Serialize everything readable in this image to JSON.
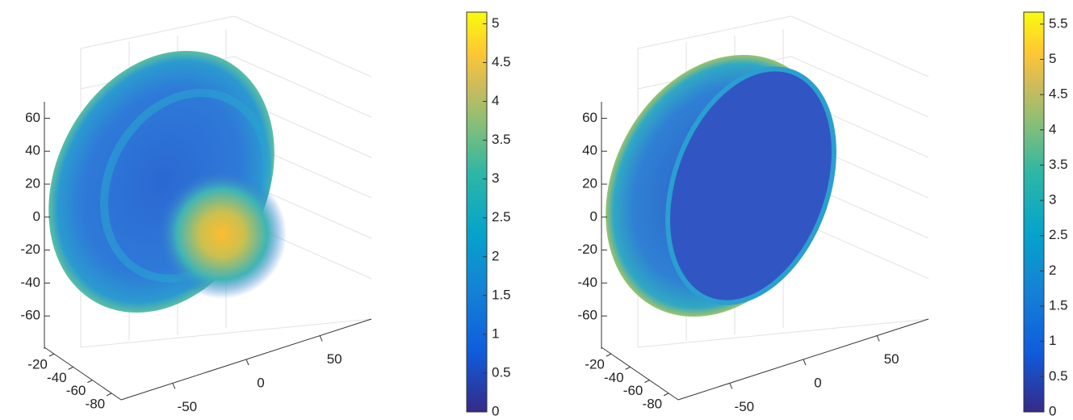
{
  "chart_data": [
    {
      "type": "surface",
      "colormap": "parula",
      "grid": true,
      "zlim": [
        -80,
        70
      ],
      "zticks": [
        60,
        40,
        20,
        0,
        -20,
        -40,
        -60
      ],
      "xlim": [
        -10,
        -90
      ],
      "xticks": [
        -20,
        -40,
        -60,
        -80
      ],
      "ylim": [
        -85,
        85
      ],
      "yticks": [
        -50,
        0,
        50
      ],
      "colorbar": {
        "clim": [
          0,
          5.15
        ],
        "ticks": [
          0,
          0.5,
          1,
          1.5,
          2,
          2.5,
          3,
          3.5,
          4,
          4.5,
          5
        ]
      }
    },
    {
      "type": "surface",
      "colormap": "parula",
      "grid": true,
      "zlim": [
        -80,
        70
      ],
      "zticks": [
        60,
        40,
        20,
        0,
        -20,
        -40,
        -60
      ],
      "xlim": [
        -10,
        -90
      ],
      "xticks": [
        -20,
        -40,
        -60,
        -80
      ],
      "ylim": [
        -85,
        85
      ],
      "yticks": [
        -50,
        0,
        50
      ],
      "colorbar": {
        "clim": [
          0,
          5.67
        ],
        "ticks": [
          0,
          0.5,
          1,
          1.5,
          2,
          2.5,
          3,
          3.5,
          4,
          4.5,
          5,
          5.5
        ]
      }
    }
  ]
}
